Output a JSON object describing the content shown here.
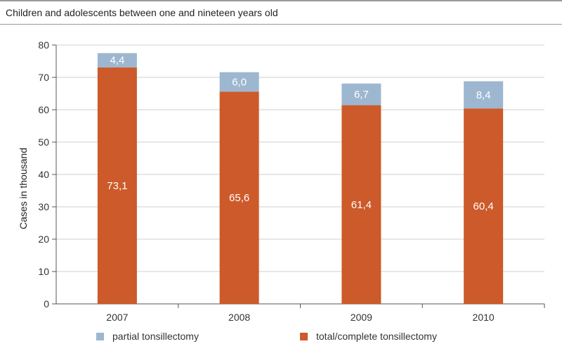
{
  "header": {
    "subtitle": "Children and adolescents between one and nineteen years old"
  },
  "chart_data": {
    "type": "bar",
    "stacked": true,
    "categories": [
      "2007",
      "2008",
      "2009",
      "2010"
    ],
    "series": [
      {
        "name": "total/complete tonsillectomy",
        "values": [
          73.1,
          65.6,
          61.4,
          60.4
        ],
        "labels": [
          "73,1",
          "65,6",
          "61,4",
          "60,4"
        ],
        "color": "#cc5a2a"
      },
      {
        "name": "partial tonsillectomy",
        "values": [
          4.4,
          6.0,
          6.7,
          8.4
        ],
        "labels": [
          "4,4",
          "6,0",
          "6,7",
          "8,4"
        ],
        "color": "#9db7d0"
      }
    ],
    "title": "Children and adolescents between one and nineteen years old",
    "xlabel": "",
    "ylabel": "Cases in thousand",
    "ylim": [
      0,
      80
    ],
    "yticks": [
      0,
      10,
      20,
      30,
      40,
      50,
      60,
      70,
      80
    ],
    "grid": true,
    "legend_position": "bottom"
  },
  "legend": {
    "items": [
      {
        "label": "partial tonsillectomy",
        "color": "#9db7d0"
      },
      {
        "label": "total/complete tonsillectomy",
        "color": "#cc5a2a"
      }
    ]
  }
}
